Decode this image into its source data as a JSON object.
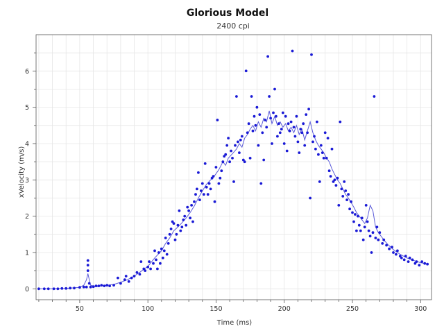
{
  "chart_data": {
    "type": "scatter",
    "title": "Glorious Model",
    "subtitle": "2400 cpi",
    "xlabel": "Time (ms)",
    "ylabel": "xVelocity (m/s)",
    "xlim": [
      18,
      308
    ],
    "ylim": [
      -0.3,
      7.0
    ],
    "xticks": [
      50,
      100,
      150,
      200,
      250,
      300
    ],
    "yticks": [
      0,
      1,
      2,
      3,
      4,
      5,
      6
    ],
    "grid": true,
    "colors": {
      "points": "#1a1ad6",
      "line": "#5a5ad8",
      "grid": "#e6e6e6",
      "axis": "#555555"
    },
    "series": [
      {
        "type": "scatter",
        "points": [
          [
            20,
            0
          ],
          [
            24,
            0
          ],
          [
            27,
            0
          ],
          [
            31,
            0
          ],
          [
            34,
            0
          ],
          [
            37,
            0.01
          ],
          [
            40,
            0.01
          ],
          [
            43,
            0.02
          ],
          [
            46,
            0.02
          ],
          [
            50,
            0.04
          ],
          [
            53,
            0.05
          ],
          [
            55,
            0.05
          ],
          [
            56,
            0.5
          ],
          [
            56,
            0.65
          ],
          [
            56,
            0.78
          ],
          [
            57,
            0.15
          ],
          [
            58,
            0.05
          ],
          [
            60,
            0.06
          ],
          [
            62,
            0.08
          ],
          [
            64,
            0.08
          ],
          [
            66,
            0.1
          ],
          [
            68,
            0.08
          ],
          [
            70,
            0.1
          ],
          [
            72,
            0.08
          ],
          [
            75,
            0.1
          ],
          [
            78,
            0.3
          ],
          [
            80,
            0.15
          ],
          [
            83,
            0.25
          ],
          [
            84,
            0.35
          ],
          [
            86,
            0.2
          ],
          [
            88,
            0.3
          ],
          [
            90,
            0.35
          ],
          [
            92,
            0.45
          ],
          [
            94,
            0.4
          ],
          [
            95,
            0.75
          ],
          [
            97,
            0.55
          ],
          [
            98,
            0.5
          ],
          [
            100,
            0.6
          ],
          [
            101,
            0.75
          ],
          [
            102,
            0.55
          ],
          [
            104,
            0.7
          ],
          [
            105,
            1.05
          ],
          [
            106,
            0.8
          ],
          [
            107,
            0.55
          ],
          [
            108,
            1.0
          ],
          [
            109,
            0.7
          ],
          [
            110,
            1.1
          ],
          [
            111,
            0.85
          ],
          [
            112,
            1.05
          ],
          [
            113,
            1.4
          ],
          [
            114,
            0.95
          ],
          [
            115,
            1.25
          ],
          [
            116,
            1.5
          ],
          [
            117,
            1.65
          ],
          [
            118,
            1.85
          ],
          [
            119,
            1.8
          ],
          [
            120,
            1.35
          ],
          [
            121,
            1.5
          ],
          [
            122,
            1.75
          ],
          [
            123,
            2.15
          ],
          [
            124,
            1.6
          ],
          [
            125,
            1.7
          ],
          [
            126,
            1.9
          ],
          [
            127,
            2.0
          ],
          [
            128,
            1.75
          ],
          [
            129,
            2.25
          ],
          [
            130,
            2.15
          ],
          [
            131,
            1.95
          ],
          [
            132,
            2.3
          ],
          [
            133,
            1.85
          ],
          [
            134,
            2.4
          ],
          [
            135,
            2.6
          ],
          [
            136,
            2.75
          ],
          [
            137,
            3.2
          ],
          [
            138,
            2.45
          ],
          [
            139,
            2.7
          ],
          [
            140,
            2.9
          ],
          [
            141,
            2.6
          ],
          [
            142,
            3.45
          ],
          [
            143,
            2.8
          ],
          [
            144,
            2.6
          ],
          [
            145,
            2.9
          ],
          [
            146,
            2.75
          ],
          [
            147,
            3.05
          ],
          [
            148,
            3.1
          ],
          [
            149,
            2.4
          ],
          [
            150,
            3.35
          ],
          [
            151,
            4.65
          ],
          [
            152,
            2.9
          ],
          [
            153,
            3.05
          ],
          [
            154,
            3.25
          ],
          [
            155,
            3.5
          ],
          [
            156,
            3.65
          ],
          [
            157,
            3.7
          ],
          [
            158,
            3.95
          ],
          [
            159,
            4.15
          ],
          [
            160,
            3.5
          ],
          [
            161,
            3.8
          ],
          [
            162,
            3.6
          ],
          [
            163,
            2.95
          ],
          [
            164,
            3.95
          ],
          [
            165,
            5.3
          ],
          [
            166,
            4.05
          ],
          [
            167,
            3.75
          ],
          [
            168,
            4.1
          ],
          [
            169,
            4.2
          ],
          [
            170,
            3.55
          ],
          [
            171,
            3.5
          ],
          [
            172,
            6.0
          ],
          [
            173,
            4.3
          ],
          [
            174,
            4.55
          ],
          [
            175,
            3.6
          ],
          [
            176,
            5.3
          ],
          [
            177,
            4.35
          ],
          [
            178,
            4.75
          ],
          [
            179,
            4.5
          ],
          [
            180,
            5.0
          ],
          [
            181,
            3.95
          ],
          [
            182,
            4.8
          ],
          [
            183,
            2.9
          ],
          [
            184,
            4.3
          ],
          [
            185,
            3.55
          ],
          [
            186,
            4.65
          ],
          [
            187,
            4.45
          ],
          [
            188,
            6.4
          ],
          [
            189,
            5.3
          ],
          [
            190,
            4.7
          ],
          [
            191,
            4.0
          ],
          [
            192,
            4.85
          ],
          [
            193,
            5.5
          ],
          [
            194,
            4.75
          ],
          [
            195,
            4.2
          ],
          [
            196,
            4.55
          ],
          [
            197,
            4.3
          ],
          [
            198,
            4.4
          ],
          [
            199,
            4.85
          ],
          [
            200,
            4.0
          ],
          [
            201,
            4.75
          ],
          [
            202,
            3.8
          ],
          [
            203,
            4.55
          ],
          [
            204,
            4.35
          ],
          [
            205,
            4.6
          ],
          [
            206,
            6.55
          ],
          [
            207,
            4.45
          ],
          [
            208,
            4.2
          ],
          [
            209,
            4.75
          ],
          [
            210,
            4.05
          ],
          [
            211,
            3.75
          ],
          [
            212,
            4.4
          ],
          [
            213,
            4.3
          ],
          [
            214,
            4.55
          ],
          [
            215,
            3.95
          ],
          [
            216,
            4.8
          ],
          [
            217,
            4.3
          ],
          [
            218,
            4.95
          ],
          [
            219,
            2.5
          ],
          [
            220,
            6.45
          ],
          [
            221,
            4.05
          ],
          [
            222,
            4.2
          ],
          [
            223,
            3.85
          ],
          [
            224,
            4.6
          ],
          [
            225,
            3.7
          ],
          [
            226,
            2.95
          ],
          [
            227,
            3.95
          ],
          [
            228,
            3.75
          ],
          [
            229,
            3.6
          ],
          [
            230,
            4.3
          ],
          [
            231,
            3.6
          ],
          [
            232,
            4.15
          ],
          [
            233,
            3.25
          ],
          [
            234,
            3.1
          ],
          [
            235,
            3.85
          ],
          [
            236,
            2.95
          ],
          [
            237,
            3.0
          ],
          [
            238,
            2.85
          ],
          [
            239,
            3.05
          ],
          [
            240,
            2.3
          ],
          [
            241,
            4.6
          ],
          [
            242,
            2.75
          ],
          [
            243,
            2.55
          ],
          [
            244,
            2.95
          ],
          [
            245,
            2.7
          ],
          [
            246,
            2.45
          ],
          [
            247,
            2.6
          ],
          [
            248,
            2.2
          ],
          [
            249,
            2.4
          ],
          [
            250,
            2.1
          ],
          [
            251,
            1.85
          ],
          [
            252,
            2.05
          ],
          [
            253,
            1.6
          ],
          [
            254,
            2.0
          ],
          [
            255,
            1.75
          ],
          [
            256,
            1.6
          ],
          [
            257,
            1.95
          ],
          [
            258,
            1.35
          ],
          [
            259,
            1.7
          ],
          [
            260,
            2.3
          ],
          [
            261,
            1.85
          ],
          [
            262,
            1.6
          ],
          [
            263,
            1.45
          ],
          [
            264,
            1.0
          ],
          [
            265,
            1.55
          ],
          [
            266,
            5.3
          ],
          [
            267,
            1.4
          ],
          [
            268,
            1.7
          ],
          [
            269,
            1.35
          ],
          [
            270,
            1.55
          ],
          [
            272,
            1.25
          ],
          [
            273,
            1.35
          ],
          [
            275,
            1.2
          ],
          [
            277,
            1.1
          ],
          [
            279,
            1.15
          ],
          [
            280,
            1.0
          ],
          [
            282,
            0.95
          ],
          [
            283,
            1.05
          ],
          [
            285,
            0.9
          ],
          [
            286,
            0.85
          ],
          [
            288,
            0.8
          ],
          [
            289,
            0.9
          ],
          [
            291,
            0.75
          ],
          [
            292,
            0.85
          ],
          [
            294,
            0.8
          ],
          [
            296,
            0.7
          ],
          [
            297,
            0.75
          ],
          [
            299,
            0.65
          ],
          [
            301,
            0.75
          ],
          [
            303,
            0.7
          ],
          [
            305,
            0.68
          ]
        ]
      },
      {
        "type": "line",
        "points": [
          [
            20,
            0
          ],
          [
            30,
            0
          ],
          [
            40,
            0.01
          ],
          [
            50,
            0.04
          ],
          [
            53,
            0.1
          ],
          [
            55,
            0.25
          ],
          [
            56,
            0.42
          ],
          [
            57,
            0.25
          ],
          [
            58,
            0.1
          ],
          [
            62,
            0.06
          ],
          [
            66,
            0.08
          ],
          [
            70,
            0.1
          ],
          [
            75,
            0.12
          ],
          [
            80,
            0.18
          ],
          [
            85,
            0.25
          ],
          [
            90,
            0.35
          ],
          [
            95,
            0.48
          ],
          [
            100,
            0.62
          ],
          [
            105,
            0.85
          ],
          [
            110,
            1.05
          ],
          [
            113,
            1.25
          ],
          [
            116,
            1.4
          ],
          [
            119,
            1.6
          ],
          [
            122,
            1.7
          ],
          [
            125,
            1.82
          ],
          [
            128,
            1.95
          ],
          [
            131,
            2.1
          ],
          [
            134,
            2.28
          ],
          [
            137,
            2.5
          ],
          [
            140,
            2.7
          ],
          [
            143,
            2.88
          ],
          [
            146,
            3.0
          ],
          [
            149,
            3.12
          ],
          [
            152,
            3.28
          ],
          [
            155,
            3.5
          ],
          [
            157,
            3.4
          ],
          [
            159,
            3.6
          ],
          [
            162,
            3.72
          ],
          [
            165,
            3.85
          ],
          [
            167,
            4.0
          ],
          [
            169,
            3.9
          ],
          [
            171,
            4.15
          ],
          [
            173,
            4.25
          ],
          [
            175,
            4.4
          ],
          [
            177,
            4.5
          ],
          [
            179,
            4.35
          ],
          [
            181,
            4.6
          ],
          [
            183,
            4.45
          ],
          [
            185,
            4.7
          ],
          [
            187,
            4.6
          ],
          [
            189,
            4.9
          ],
          [
            191,
            4.55
          ],
          [
            193,
            4.75
          ],
          [
            195,
            4.5
          ],
          [
            197,
            4.6
          ],
          [
            199,
            4.45
          ],
          [
            201,
            4.55
          ],
          [
            203,
            4.35
          ],
          [
            205,
            4.45
          ],
          [
            207,
            4.3
          ],
          [
            209,
            4.5
          ],
          [
            211,
            4.25
          ],
          [
            213,
            4.4
          ],
          [
            215,
            4.1
          ],
          [
            217,
            4.35
          ],
          [
            219,
            4.6
          ],
          [
            221,
            4.3
          ],
          [
            223,
            4.1
          ],
          [
            225,
            3.95
          ],
          [
            227,
            3.85
          ],
          [
            229,
            3.75
          ],
          [
            231,
            3.6
          ],
          [
            233,
            3.5
          ],
          [
            235,
            3.3
          ],
          [
            237,
            3.15
          ],
          [
            239,
            3.0
          ],
          [
            241,
            2.9
          ],
          [
            243,
            2.75
          ],
          [
            245,
            2.6
          ],
          [
            247,
            2.5
          ],
          [
            249,
            2.38
          ],
          [
            251,
            2.25
          ],
          [
            253,
            2.1
          ],
          [
            255,
            2.0
          ],
          [
            257,
            1.9
          ],
          [
            259,
            1.8
          ],
          [
            261,
            1.95
          ],
          [
            263,
            2.3
          ],
          [
            265,
            2.15
          ],
          [
            267,
            1.7
          ],
          [
            269,
            1.55
          ],
          [
            271,
            1.45
          ],
          [
            273,
            1.35
          ],
          [
            276,
            1.22
          ],
          [
            280,
            1.08
          ],
          [
            285,
            0.95
          ],
          [
            290,
            0.85
          ],
          [
            295,
            0.78
          ],
          [
            300,
            0.72
          ],
          [
            305,
            0.68
          ]
        ]
      }
    ]
  }
}
